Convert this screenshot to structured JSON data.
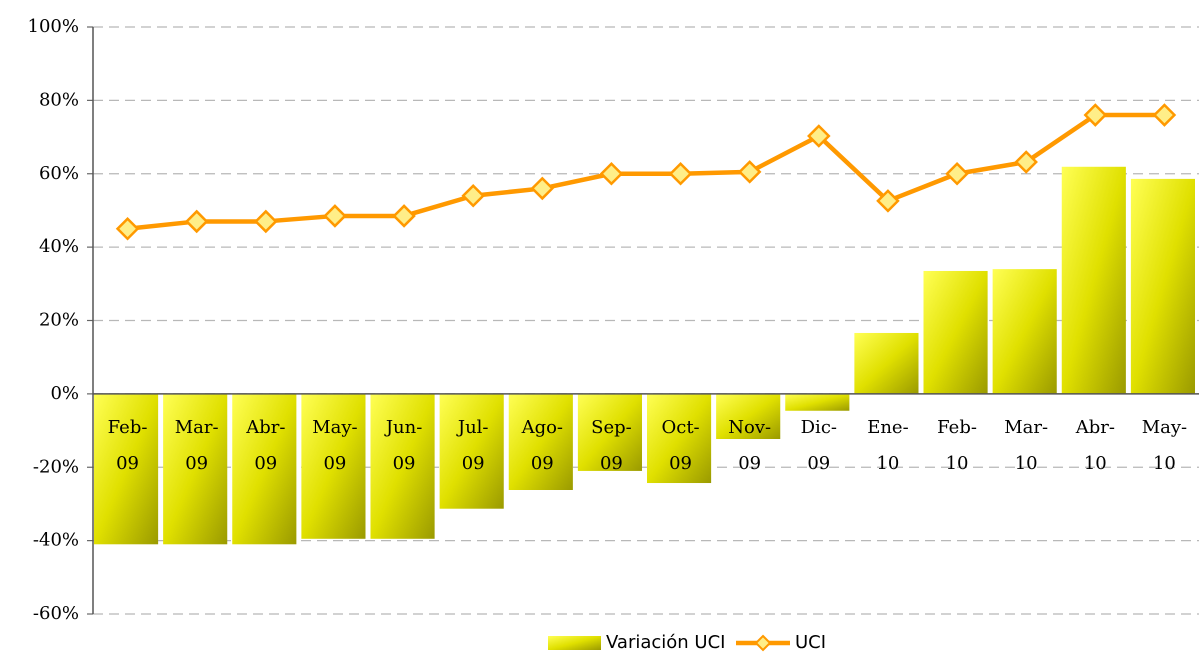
{
  "chart_data": {
    "type": "bar-line",
    "categories": [
      "Feb-09",
      "Mar-09",
      "Abr-09",
      "May-09",
      "Jun-09",
      "Jul-09",
      "Ago-09",
      "Sep-09",
      "Oct-09",
      "Nov-09",
      "Dic-09",
      "Ene-10",
      "Feb-10",
      "Mar-10",
      "Abr-10",
      "May-10"
    ],
    "series": [
      {
        "name": "Variación UCI",
        "type": "bar",
        "color": "#e6e600",
        "values": [
          -41,
          -41,
          -41,
          -39.5,
          -39.5,
          -31.3,
          -26.2,
          -21,
          -24.3,
          -12.3,
          -4.6,
          16.6,
          33.5,
          34,
          61.9,
          58.6
        ]
      },
      {
        "name": "UCI",
        "type": "line",
        "color": "#ff9900",
        "marker_fill": "#ffee88",
        "values": [
          45,
          47,
          47,
          48.5,
          48.5,
          54,
          56,
          60,
          60,
          60.5,
          70.3,
          52.6,
          60,
          63.2,
          76,
          76
        ]
      }
    ],
    "ylim": [
      -60,
      100
    ],
    "yticks": [
      {
        "value": -60,
        "label": "-60%"
      },
      {
        "value": -40,
        "label": "-40%"
      },
      {
        "value": -20,
        "label": "-20%"
      },
      {
        "value": 0,
        "label": "0%"
      },
      {
        "value": 20,
        "label": "20%"
      },
      {
        "value": 40,
        "label": "40%"
      },
      {
        "value": 60,
        "label": "60%"
      },
      {
        "value": 80,
        "label": "80%"
      },
      {
        "value": 100,
        "label": "100%"
      }
    ],
    "grid": true,
    "legend": "bottom"
  }
}
